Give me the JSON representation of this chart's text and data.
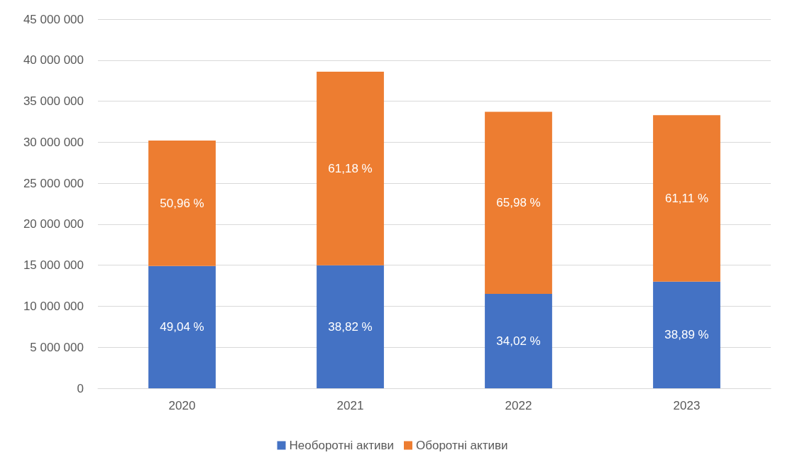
{
  "chart_data": {
    "type": "bar",
    "stacked": true,
    "categories": [
      "2020",
      "2021",
      "2022",
      "2023"
    ],
    "series": [
      {
        "name": "Необоротні активи",
        "color": "#4472c4",
        "values": [
          14900000,
          15000000,
          11500000,
          13000000
        ]
      },
      {
        "name": "Оборотні активи",
        "color": "#ed7d31",
        "values": [
          15300000,
          23600000,
          22200000,
          20300000
        ]
      }
    ],
    "annotations": [
      "49,04 %",
      "38,82 %",
      "34,02 %",
      "38,89 %",
      "50,96 %",
      "61,18 %",
      "65,98 %",
      "61,11 %"
    ],
    "ylim": [
      0,
      45000000
    ],
    "yticks": [
      0,
      {
        "value": 5000000,
        "label": "5 000 000"
      },
      {
        "value": 10000000,
        "label": "10 000 000"
      },
      {
        "value": 15000000,
        "label": "15 000 000"
      },
      {
        "value": 20000000,
        "label": "20 000 000"
      },
      {
        "value": 25000000,
        "label": "25 000 000"
      },
      {
        "value": 30000000,
        "label": "30 000 000"
      },
      {
        "value": 35000000,
        "label": "35 000 000"
      },
      {
        "value": 40000000,
        "label": "40 000 000"
      },
      {
        "value": 45000000,
        "label": "45 000 000"
      }
    ],
    "grid": "y",
    "legend": "bottom"
  }
}
